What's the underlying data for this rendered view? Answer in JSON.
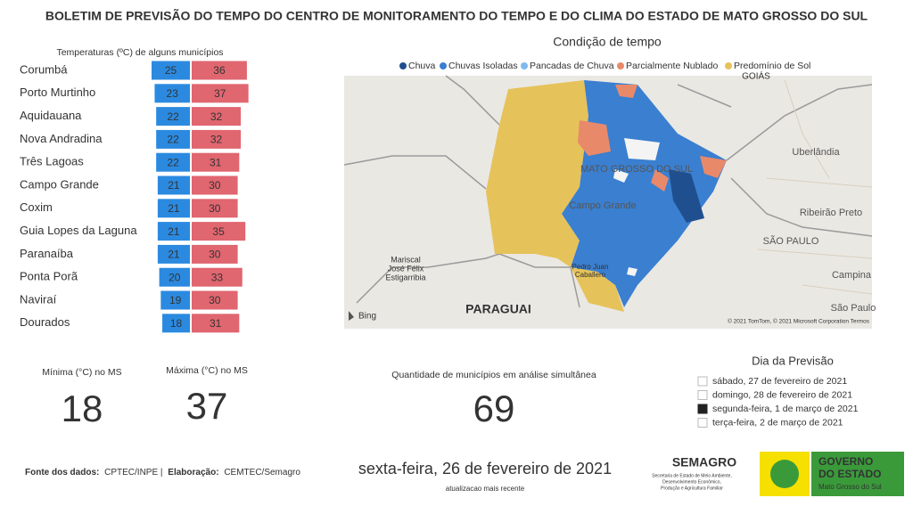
{
  "header": {
    "title": "BOLETIM DE PREVISÃO DO TEMPO DO CENTRO DE MONITORAMENTO DO TEMPO E DO CLIMA DO ESTADO DE MATO GROSSO DO SUL"
  },
  "temperatures": {
    "title": "Temperaturas (ºC) de alguns municípios",
    "municipalities": [
      "Corumbá",
      "Porto Murtinho",
      "Aquidauana",
      "Nova Andradina",
      "Três Lagoas",
      "Campo Grande",
      "Coxim",
      "Guia Lopes da Laguna",
      "Paranaíba",
      "Ponta Porã",
      "Naviraí",
      "Dourados"
    ],
    "min": [
      25,
      23,
      22,
      22,
      22,
      21,
      21,
      21,
      21,
      20,
      19,
      18
    ],
    "max": [
      36,
      37,
      32,
      32,
      31,
      30,
      30,
      35,
      30,
      33,
      30,
      31
    ],
    "min_color": "#2b8ae0",
    "max_color": "#e06670"
  },
  "summary": {
    "min_label": "Mínima (°C) no MS",
    "min_value": 18,
    "max_label": "Máxima (°C) no MS",
    "max_value": 37,
    "count_label": "Quantidade de municípios em análise simultânea",
    "count_value": 69
  },
  "map": {
    "title": "Condição de tempo",
    "legend": [
      {
        "name": "Chuva",
        "color": "#1f4f8f"
      },
      {
        "name": "Chuvas Isoladas",
        "color": "#3a7fd0"
      },
      {
        "name": "Pancadas de Chuva",
        "color": "#80b9ef"
      },
      {
        "name": "Parcialmente Nublado",
        "color": "#e8896a"
      },
      {
        "name": "Predomínio de Sol",
        "color": "#e6c25a"
      }
    ],
    "labels": [
      "MATO GROSSO DO SUL",
      "Campo Grande",
      "Uberlândia",
      "Ribeirão Preto",
      "SÃO PAULO",
      "Campina",
      "São Paulo",
      "PARAGUAI",
      "Mariscal",
      "José Félix",
      "Estigarribia",
      "Pedro Juan",
      "Caballero",
      "GOIÁS"
    ],
    "provider": "Bing",
    "attribution": "© 2021 TomTom, © 2021 Microsoft Corporation Termos"
  },
  "forecast_day": {
    "title": "Dia da Previsão",
    "options": [
      {
        "label": "sábado, 27 de fevereiro de 2021",
        "checked": false
      },
      {
        "label": "domingo, 28 de fevereiro de 2021",
        "checked": false
      },
      {
        "label": "segunda-feira, 1 de março de 2021",
        "checked": true
      },
      {
        "label": "terça-feira, 2 de março de 2021",
        "checked": false
      }
    ]
  },
  "footer": {
    "source_label": "Fonte dos dados:",
    "source": "CPTEC/INPE |",
    "credit_label": "Elaboração:",
    "credit": "CEMTEC/Semagro",
    "date": "sexta-feira, 26 de fevereiro de 2021",
    "updated": "atualizacao mais recente"
  },
  "logos": {
    "semagro": "SEMAGRO",
    "semagro_lines": [
      "Secretaria de Estado de Meio Ambiente,",
      "Desenvolvimento Econômico,",
      "Produção e Agricultura Familiar"
    ],
    "gov_lines": [
      "GOVERNO",
      "DO ESTADO",
      "Mato Grosso do Sul"
    ]
  }
}
